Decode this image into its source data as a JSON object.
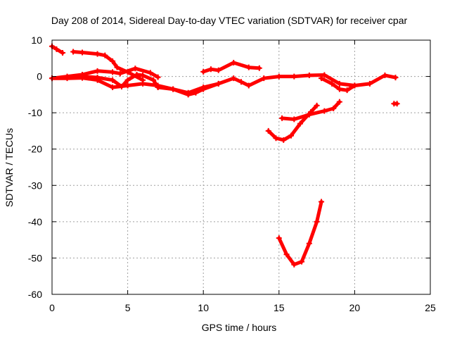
{
  "chart_data": {
    "type": "line",
    "title": "Day 208 of 2014, Sidereal Day-to-day VTEC variation (SDTVAR) for receiver cpar",
    "xlabel": "GPS time / hours",
    "ylabel": "SDTVAR / TECUs",
    "xlim": [
      0,
      25
    ],
    "ylim": [
      -60,
      10
    ],
    "xticks": [
      0,
      5,
      10,
      15,
      20,
      25
    ],
    "yticks": [
      -60,
      -50,
      -40,
      -30,
      -20,
      -10,
      0,
      10
    ],
    "xtick_labels": [
      "0",
      "5",
      "10",
      "15",
      "20",
      "25"
    ],
    "ytick_labels": [
      "-60",
      "-50",
      "-40",
      "-30",
      "-20",
      "-10",
      "0",
      "10"
    ],
    "grid": true,
    "color": "#ff0000",
    "series": [
      {
        "name": "s1",
        "x": [
          0,
          0.3,
          0.7
        ],
        "y": [
          8.3,
          7.5,
          6.5
        ]
      },
      {
        "name": "s2",
        "x": [
          1.4,
          2,
          3,
          3.5,
          4,
          4.3,
          5,
          6
        ],
        "y": [
          6.8,
          6.6,
          6.2,
          5.8,
          4.2,
          2.5,
          1.2,
          -1
        ]
      },
      {
        "name": "s3",
        "x": [
          0,
          1,
          2,
          3,
          4,
          4.5,
          5.5,
          6.5,
          7
        ],
        "y": [
          -0.5,
          0,
          0.5,
          1.5,
          1.2,
          0.8,
          2.2,
          1,
          -0.2
        ]
      },
      {
        "name": "s4",
        "x": [
          0,
          1,
          2,
          3,
          4,
          5,
          6,
          7,
          8,
          9,
          9.5,
          10,
          11,
          12,
          12.5,
          13,
          14,
          15,
          16,
          17,
          18,
          19,
          20,
          21,
          22,
          22.7
        ],
        "y": [
          -0.5,
          -0.5,
          -0.4,
          -1,
          -3,
          -2.5,
          -2,
          -2.5,
          -3.5,
          -5,
          -4.5,
          -3.5,
          -2,
          -0.5,
          -1.5,
          -2.5,
          -0.5,
          0,
          0,
          0.3,
          0.4,
          -2,
          -2.5,
          -2,
          0.3,
          -0.3
        ]
      },
      {
        "name": "s5",
        "x": [
          2,
          3,
          4,
          4.6,
          5,
          5.6,
          6,
          6.7,
          7
        ],
        "y": [
          0,
          -0.3,
          -1,
          -2.8,
          -1,
          0.5,
          0.3,
          -1,
          -3
        ]
      },
      {
        "name": "s6",
        "x": [
          7,
          8,
          9,
          10,
          11
        ],
        "y": [
          -3,
          -3.5,
          -4.5,
          -3,
          -2
        ]
      },
      {
        "name": "s7",
        "x": [
          10,
          10.5,
          11,
          12,
          13,
          13.7
        ],
        "y": [
          1.3,
          2,
          1.7,
          3.8,
          2.5,
          2.3
        ]
      },
      {
        "name": "s8",
        "x": [
          17.8,
          18.5,
          19,
          19.5,
          20
        ],
        "y": [
          -0.5,
          -2,
          -3.5,
          -3.8,
          -2.5
        ]
      },
      {
        "name": "s9",
        "x": [
          14.3,
          14.8,
          15.3,
          15.8,
          16.4,
          17.1,
          17.5
        ],
        "y": [
          -15,
          -17,
          -17.5,
          -16.3,
          -13,
          -9.8,
          -8
        ]
      },
      {
        "name": "s10",
        "x": [
          15.2,
          16,
          17,
          18,
          18.6,
          19
        ],
        "y": [
          -11.5,
          -11.8,
          -10.5,
          -9.5,
          -8.8,
          -7
        ]
      },
      {
        "name": "s11",
        "x": [
          15,
          15.5,
          16,
          16.5,
          17,
          17.5,
          17.8
        ],
        "y": [
          -44.5,
          -49,
          -51.8,
          -51,
          -46,
          -40,
          -34.5
        ]
      },
      {
        "name": "s12",
        "x": [
          22.6,
          22.8
        ],
        "y": [
          -7.5,
          -7.5
        ]
      }
    ]
  }
}
